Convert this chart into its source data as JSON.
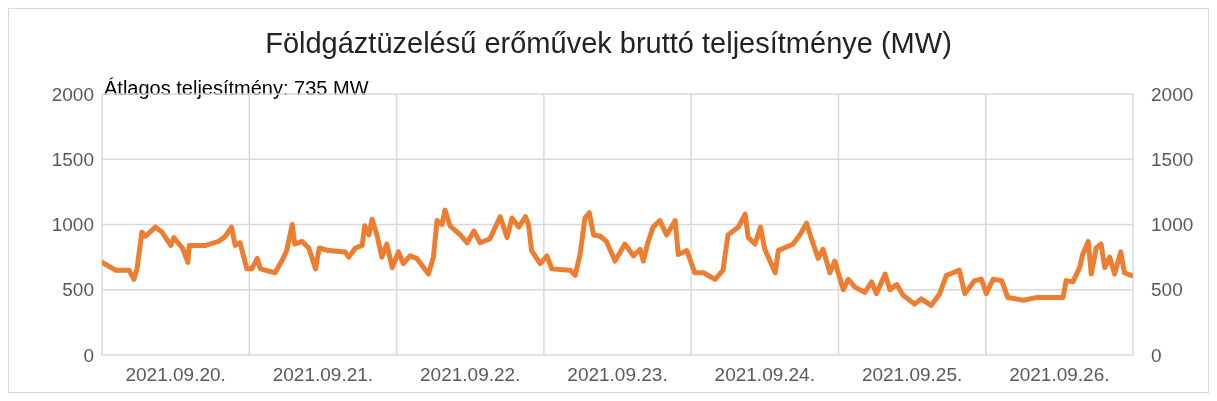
{
  "chart_data": {
    "type": "line",
    "title": "Földgáztüzelésű erőművek bruttó teljesítménye (MW)",
    "annotations": [
      "Átlagos teljesítmény: 735 MW"
    ],
    "x": [
      "2021-09-20T00:00",
      "2021-09-20T01:06",
      "2021-09-20T02:12",
      "2021-09-20T04:24",
      "2021-09-20T05:12",
      "2021-09-20T05:42",
      "2021-09-20T06:30",
      "2021-09-20T07:06",
      "2021-09-20T08:42",
      "2021-09-20T09:48",
      "2021-09-20T11:12",
      "2021-09-20T11:42",
      "2021-09-20T13:06",
      "2021-09-20T14:00",
      "2021-09-20T14:12",
      "2021-09-20T16:54",
      "2021-09-20T19:00",
      "2021-09-20T20:06",
      "2021-09-20T21:06",
      "2021-09-20T21:42",
      "2021-09-20T22:30",
      "2021-09-20T23:36",
      "2021-09-21T00:24",
      "2021-09-21T01:18",
      "2021-09-21T01:48",
      "2021-09-21T04:12",
      "2021-09-21T05:18",
      "2021-09-21T06:06",
      "2021-09-21T07:00",
      "2021-09-21T07:24",
      "2021-09-21T08:36",
      "2021-09-21T09:42",
      "2021-09-21T10:48",
      "2021-09-21T11:24",
      "2021-09-21T12:54",
      "2021-09-21T15:36",
      "2021-09-21T16:12",
      "2021-09-21T17:18",
      "2021-09-21T18:24",
      "2021-09-21T18:48",
      "2021-09-21T19:30",
      "2021-09-21T20:00",
      "2021-09-21T20:48",
      "2021-09-21T21:36",
      "2021-09-21T22:24",
      "2021-09-21T23:18",
      "2021-09-22T00:18",
      "2021-09-22T01:06",
      "2021-09-22T02:12",
      "2021-09-22T03:18",
      "2021-09-22T05:12",
      "2021-09-22T06:00",
      "2021-09-22T06:36",
      "2021-09-22T07:24",
      "2021-09-22T07:54",
      "2021-09-22T08:42",
      "2021-09-22T10:24",
      "2021-09-22T11:30",
      "2021-09-22T12:36",
      "2021-09-22T13:36",
      "2021-09-22T15:12",
      "2021-09-22T16:54",
      "2021-09-22T18:00",
      "2021-09-22T18:48",
      "2021-09-22T19:54",
      "2021-09-22T21:00",
      "2021-09-22T21:30",
      "2021-09-22T22:00",
      "2021-09-22T23:24",
      "2021-09-23T00:30",
      "2021-09-23T01:18",
      "2021-09-23T04:18",
      "2021-09-23T05:06",
      "2021-09-23T05:54",
      "2021-09-23T06:42",
      "2021-09-23T07:24",
      "2021-09-23T08:06",
      "2021-09-23T09:12",
      "2021-09-23T10:12",
      "2021-09-23T11:36",
      "2021-09-23T13:12",
      "2021-09-23T14:36",
      "2021-09-23T15:42",
      "2021-09-23T16:12",
      "2021-09-23T17:00",
      "2021-09-23T17:48",
      "2021-09-23T18:54",
      "2021-09-23T20:00",
      "2021-09-23T21:24",
      "2021-09-23T21:54",
      "2021-09-23T23:18",
      "2021-09-24T00:36",
      "2021-09-24T02:00",
      "2021-09-24T03:54",
      "2021-09-24T05:12",
      "2021-09-24T06:00",
      "2021-09-24T07:42",
      "2021-09-24T08:48",
      "2021-09-24T09:18",
      "2021-09-24T10:24",
      "2021-09-24T11:18",
      "2021-09-24T12:00",
      "2021-09-24T13:42",
      "2021-09-24T14:12",
      "2021-09-24T16:36",
      "2021-09-24T17:42",
      "2021-09-24T18:48",
      "2021-09-24T19:36",
      "2021-09-24T20:42",
      "2021-09-24T21:30",
      "2021-09-24T22:36",
      "2021-09-24T23:24",
      "2021-09-25T00:48",
      "2021-09-25T01:36",
      "2021-09-25T02:42",
      "2021-09-25T04:18",
      "2021-09-25T05:24",
      "2021-09-25T06:12",
      "2021-09-25T07:36",
      "2021-09-25T08:24",
      "2021-09-25T09:30",
      "2021-09-25T10:30",
      "2021-09-25T12:24",
      "2021-09-25T13:30",
      "2021-09-25T15:06",
      "2021-09-25T16:30",
      "2021-09-25T17:36",
      "2021-09-25T18:42",
      "2021-09-25T19:42",
      "2021-09-25T20:36",
      "2021-09-25T22:12",
      "2021-09-25T23:18",
      "2021-09-26T00:06",
      "2021-09-26T01:12",
      "2021-09-26T02:36",
      "2021-09-26T03:36",
      "2021-09-26T06:06",
      "2021-09-26T08:12",
      "2021-09-26T12:36",
      "2021-09-26T13:06",
      "2021-09-26T14:12",
      "2021-09-26T15:18",
      "2021-09-26T15:48",
      "2021-09-26T16:42",
      "2021-09-26T17:12",
      "2021-09-26T18:00",
      "2021-09-26T18:48",
      "2021-09-26T19:24",
      "2021-09-26T20:12",
      "2021-09-26T21:00",
      "2021-09-26T22:00",
      "2021-09-26T22:36",
      "2021-09-26T23:42"
    ],
    "series": [
      {
        "color": "#ed7d31",
        "values": [
          710,
          680,
          650,
          650,
          580,
          660,
          940,
          910,
          980,
          940,
          840,
          900,
          820,
          710,
          840,
          840,
          870,
          910,
          980,
          840,
          860,
          660,
          660,
          740,
          660,
          630,
          720,
          800,
          1000,
          850,
          870,
          820,
          660,
          820,
          800,
          790,
          750,
          820,
          840,
          990,
          920,
          1040,
          920,
          750,
          850,
          670,
          790,
          700,
          760,
          740,
          620,
          750,
          1030,
          1000,
          1110,
          990,
          920,
          860,
          950,
          860,
          890,
          1060,
          900,
          1050,
          980,
          1060,
          1000,
          800,
          700,
          760,
          660,
          650,
          610,
          770,
          1050,
          1090,
          920,
          910,
          870,
          720,
          850,
          760,
          810,
          720,
          870,
          980,
          1030,
          920,
          1030,
          770,
          800,
          630,
          630,
          580,
          650,
          920,
          980,
          1080,
          900,
          850,
          980,
          810,
          630,
          800,
          850,
          920,
          1010,
          890,
          740,
          810,
          630,
          720,
          500,
          580,
          520,
          480,
          560,
          470,
          620,
          500,
          540,
          460,
          390,
          430,
          380,
          470,
          610,
          630,
          650,
          470,
          570,
          580,
          470,
          580,
          570,
          440,
          420,
          440,
          440,
          570,
          560,
          670,
          770,
          870,
          620,
          820,
          850,
          670,
          750,
          620,
          790,
          630,
          610
        ]
      }
    ],
    "xlim": [
      "2021-09-20T00:00",
      "2021-09-27T00:00"
    ],
    "xticks": [
      {
        "value": "2021-09-20T00:00",
        "label": null
      },
      {
        "value": "2021-09-20T12:00",
        "label": "2021.09.20."
      },
      {
        "value": "2021-09-21T00:00",
        "label": null
      },
      {
        "value": "2021-09-21T12:00",
        "label": "2021.09.21."
      },
      {
        "value": "2021-09-22T00:00",
        "label": null
      },
      {
        "value": "2021-09-22T12:00",
        "label": "2021.09.22."
      },
      {
        "value": "2021-09-23T00:00",
        "label": null
      },
      {
        "value": "2021-09-23T12:00",
        "label": "2021.09.23."
      },
      {
        "value": "2021-09-24T00:00",
        "label": null
      },
      {
        "value": "2021-09-24T12:00",
        "label": "2021.09.24."
      },
      {
        "value": "2021-09-25T00:00",
        "label": null
      },
      {
        "value": "2021-09-25T12:00",
        "label": "2021.09.25."
      },
      {
        "value": "2021-09-26T00:00",
        "label": null
      },
      {
        "value": "2021-09-26T12:00",
        "label": "2021.09.26."
      },
      {
        "value": "2021-09-27T00:00",
        "label": null
      }
    ],
    "ylim": [
      0,
      2000
    ],
    "yticks": [
      0,
      500,
      1000,
      1500,
      2000
    ],
    "y2lim": [
      0,
      2000
    ],
    "y2ticks": [
      0,
      500,
      1000,
      1500,
      2000
    ],
    "grid": true,
    "marker": "none",
    "line_style": "solid"
  }
}
